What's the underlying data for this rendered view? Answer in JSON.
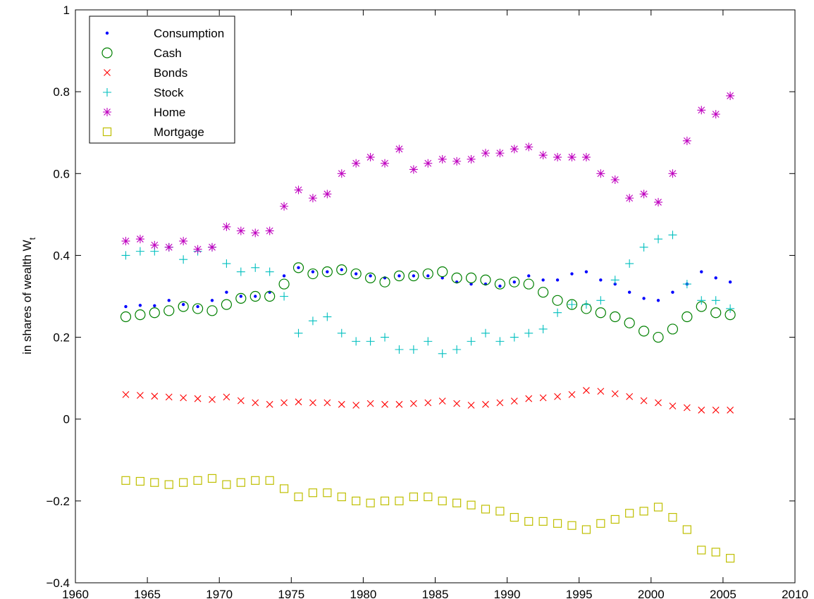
{
  "chart_data": {
    "type": "scatter",
    "y_label": "in shares of wealth W",
    "y_label_sub": "t",
    "x": [
      1963.5,
      1964.5,
      1965.5,
      1966.5,
      1967.5,
      1968.5,
      1969.5,
      1970.5,
      1971.5,
      1972.5,
      1973.5,
      1974.5,
      1975.5,
      1976.5,
      1977.5,
      1978.5,
      1979.5,
      1980.5,
      1981.5,
      1982.5,
      1983.5,
      1984.5,
      1985.5,
      1986.5,
      1987.5,
      1988.5,
      1989.5,
      1990.5,
      1991.5,
      1992.5,
      1993.5,
      1994.5,
      1995.5,
      1996.5,
      1997.5,
      1998.5,
      1999.5,
      2000.5,
      2001.5,
      2002.5,
      2003.5,
      2004.5,
      2005.5
    ],
    "xlim": [
      1960,
      2010
    ],
    "xticks": [
      1960,
      1965,
      1970,
      1975,
      1980,
      1985,
      1990,
      1995,
      2000,
      2005,
      2010
    ],
    "ylim": [
      -0.4,
      1
    ],
    "yticks": [
      {
        "value": -0.4,
        "label": "−0.4"
      },
      {
        "value": -0.2,
        "label": "−0.2"
      },
      0,
      0.2,
      0.4,
      0.6,
      0.8,
      1
    ],
    "grid": false,
    "legend": "upper left",
    "series": [
      {
        "name": "Consumption",
        "color": "#0000ff",
        "marker": "dot",
        "values": [
          0.275,
          0.278,
          0.277,
          0.29,
          0.28,
          0.275,
          0.29,
          0.31,
          0.3,
          0.3,
          0.31,
          0.35,
          0.37,
          0.36,
          0.36,
          0.365,
          0.355,
          0.35,
          0.345,
          0.35,
          0.35,
          0.35,
          0.345,
          0.335,
          0.33,
          0.33,
          0.325,
          0.335,
          0.35,
          0.34,
          0.34,
          0.355,
          0.36,
          0.34,
          0.33,
          0.31,
          0.295,
          0.29,
          0.31,
          0.33,
          0.36,
          0.345,
          0.335
        ]
      },
      {
        "name": "Cash",
        "color": "#008000",
        "marker": "circle",
        "values": [
          0.25,
          0.255,
          0.26,
          0.265,
          0.275,
          0.27,
          0.265,
          0.28,
          0.295,
          0.3,
          0.3,
          0.33,
          0.37,
          0.355,
          0.36,
          0.365,
          0.355,
          0.345,
          0.335,
          0.35,
          0.35,
          0.355,
          0.36,
          0.345,
          0.345,
          0.34,
          0.33,
          0.335,
          0.33,
          0.31,
          0.29,
          0.28,
          0.27,
          0.26,
          0.25,
          0.235,
          0.215,
          0.2,
          0.22,
          0.25,
          0.275,
          0.26,
          0.255
        ]
      },
      {
        "name": "Bonds",
        "color": "#ff0000",
        "marker": "x",
        "values": [
          0.06,
          0.058,
          0.056,
          0.054,
          0.052,
          0.05,
          0.048,
          0.054,
          0.045,
          0.04,
          0.036,
          0.04,
          0.042,
          0.04,
          0.04,
          0.036,
          0.034,
          0.038,
          0.036,
          0.036,
          0.038,
          0.04,
          0.044,
          0.038,
          0.034,
          0.036,
          0.04,
          0.044,
          0.05,
          0.052,
          0.055,
          0.06,
          0.07,
          0.068,
          0.062,
          0.055,
          0.045,
          0.04,
          0.032,
          0.028,
          0.022,
          0.022,
          0.022
        ]
      },
      {
        "name": "Stock",
        "color": "#00bfbf",
        "marker": "plus",
        "values": [
          0.4,
          0.41,
          0.41,
          0.42,
          0.39,
          0.41,
          0.42,
          0.38,
          0.36,
          0.37,
          0.36,
          0.3,
          0.21,
          0.24,
          0.25,
          0.21,
          0.19,
          0.19,
          0.2,
          0.17,
          0.17,
          0.19,
          0.16,
          0.17,
          0.19,
          0.21,
          0.19,
          0.2,
          0.21,
          0.22,
          0.26,
          0.28,
          0.28,
          0.29,
          0.34,
          0.38,
          0.42,
          0.44,
          0.45,
          0.33,
          0.29,
          0.29,
          0.27
        ]
      },
      {
        "name": "Home",
        "color": "#bf00bf",
        "marker": "star",
        "values": [
          0.435,
          0.44,
          0.425,
          0.42,
          0.435,
          0.415,
          0.42,
          0.47,
          0.46,
          0.455,
          0.46,
          0.52,
          0.56,
          0.54,
          0.55,
          0.6,
          0.625,
          0.64,
          0.625,
          0.66,
          0.61,
          0.625,
          0.635,
          0.63,
          0.635,
          0.65,
          0.65,
          0.66,
          0.665,
          0.645,
          0.64,
          0.64,
          0.64,
          0.6,
          0.585,
          0.54,
          0.55,
          0.53,
          0.6,
          0.68,
          0.755,
          0.745,
          0.79
        ]
      },
      {
        "name": "Mortgage",
        "color": "#bfbf00",
        "marker": "square",
        "values": [
          -0.15,
          -0.152,
          -0.155,
          -0.16,
          -0.155,
          -0.15,
          -0.145,
          -0.16,
          -0.155,
          -0.15,
          -0.15,
          -0.17,
          -0.19,
          -0.18,
          -0.18,
          -0.19,
          -0.2,
          -0.205,
          -0.2,
          -0.2,
          -0.19,
          -0.19,
          -0.2,
          -0.205,
          -0.21,
          -0.22,
          -0.225,
          -0.24,
          -0.25,
          -0.25,
          -0.255,
          -0.26,
          -0.27,
          -0.255,
          -0.245,
          -0.23,
          -0.225,
          -0.215,
          -0.24,
          -0.27,
          -0.32,
          -0.325,
          -0.34
        ]
      }
    ]
  }
}
